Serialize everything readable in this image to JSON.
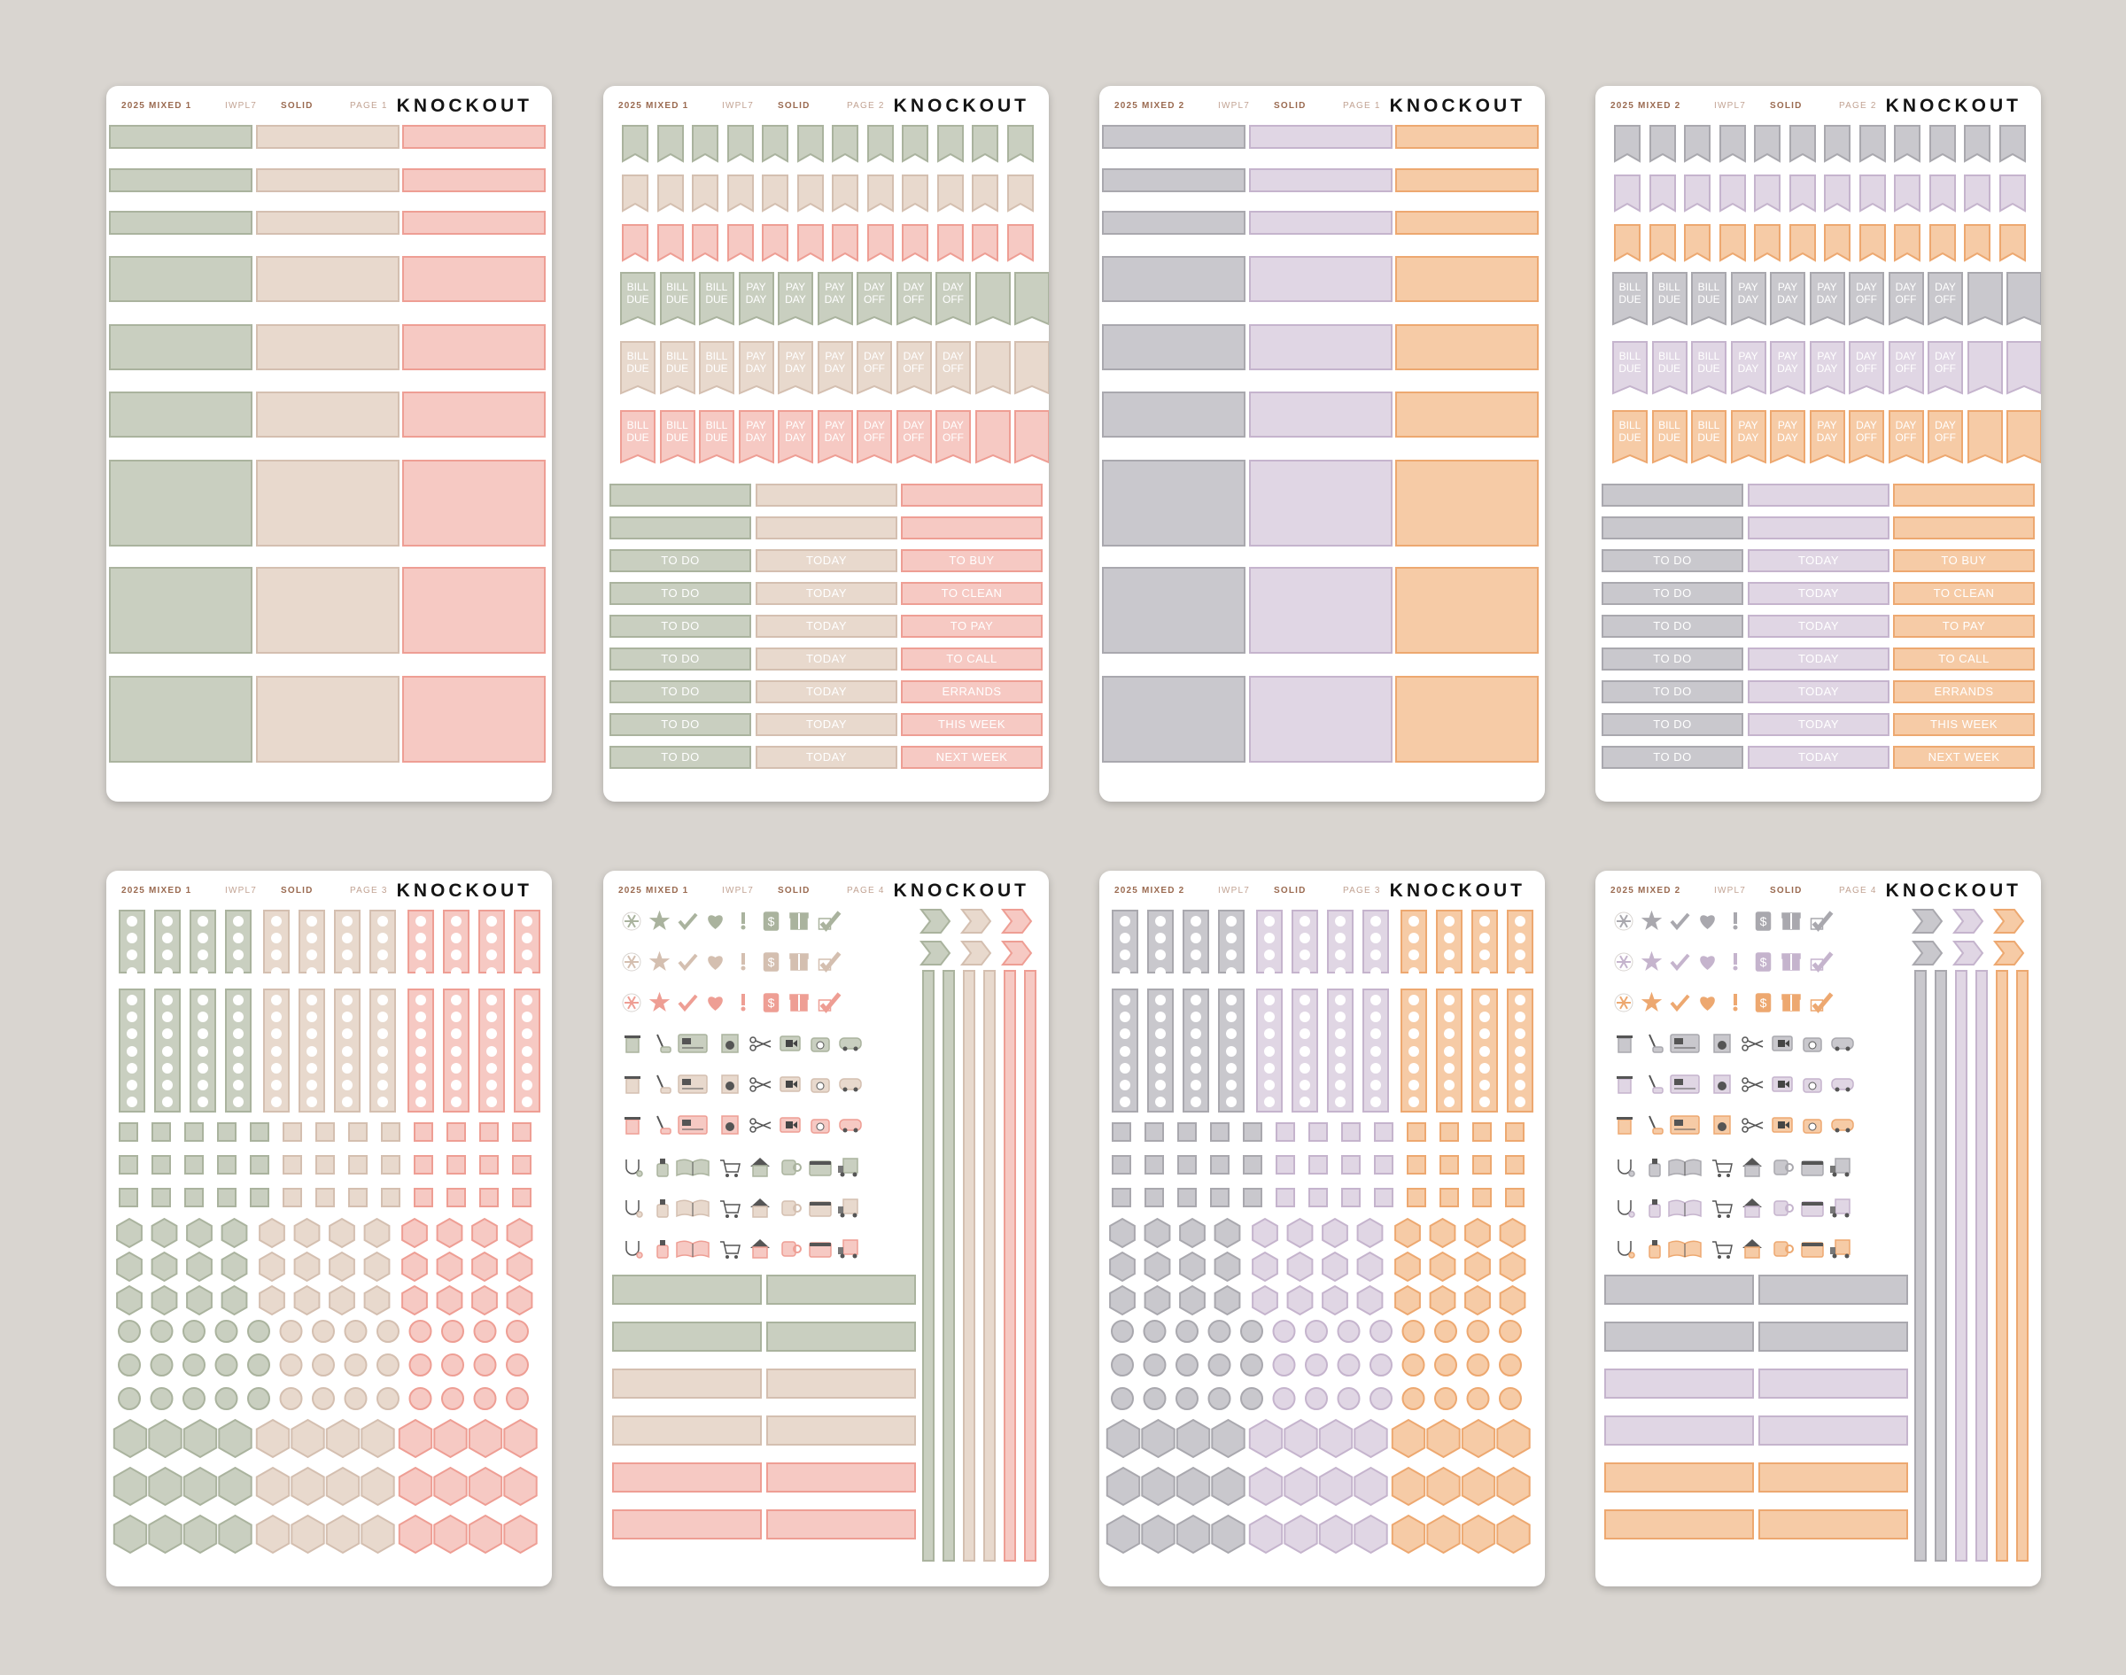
{
  "colors": {
    "mixed1": [
      "#c9cfc0",
      "#e8d9cd",
      "#f6c9c3"
    ],
    "mixed2": [
      "#c9c8cd",
      "#e0d6e4",
      "#f6cba6"
    ],
    "mixed1_dark": [
      "#aab39e",
      "#d4bfb0",
      "#ee9e94"
    ],
    "mixed2_dark": [
      "#a9a8ae",
      "#c5b4cd",
      "#eda870"
    ]
  },
  "sheets": [
    {
      "name": "2025 MIXED 1",
      "code": "IWPL7",
      "finish": "SOLID",
      "page": "PAGE 1",
      "brand": "KNOCKOUT"
    },
    {
      "name": "2025 MIXED 1",
      "code": "IWPL7",
      "finish": "SOLID",
      "page": "PAGE 2",
      "brand": "KNOCKOUT"
    },
    {
      "name": "2025 MIXED 2",
      "code": "IWPL7",
      "finish": "SOLID",
      "page": "PAGE 1",
      "brand": "KNOCKOUT"
    },
    {
      "name": "2025 MIXED 2",
      "code": "IWPL7",
      "finish": "SOLID",
      "page": "PAGE 2",
      "brand": "KNOCKOUT"
    },
    {
      "name": "2025 MIXED 1",
      "code": "IWPL7",
      "finish": "SOLID",
      "page": "PAGE 3",
      "brand": "KNOCKOUT"
    },
    {
      "name": "2025 MIXED 1",
      "code": "IWPL7",
      "finish": "SOLID",
      "page": "PAGE 4",
      "brand": "KNOCKOUT"
    },
    {
      "name": "2025 MIXED 2",
      "code": "IWPL7",
      "finish": "SOLID",
      "page": "PAGE 3",
      "brand": "KNOCKOUT"
    },
    {
      "name": "2025 MIXED 2",
      "code": "IWPL7",
      "finish": "SOLID",
      "page": "PAGE 4",
      "brand": "KNOCKOUT"
    }
  ],
  "flag_labels": [
    [
      "BILL",
      "DUE"
    ],
    [
      "BILL",
      "DUE"
    ],
    [
      "BILL",
      "DUE"
    ],
    [
      "PAY",
      "DAY"
    ],
    [
      "PAY",
      "DAY"
    ],
    [
      "PAY",
      "DAY"
    ],
    [
      "DAY",
      "OFF"
    ],
    [
      "DAY",
      "OFF"
    ],
    [
      "DAY",
      "OFF"
    ]
  ],
  "label_strips": {
    "col1": "TO DO",
    "col2": "TODAY",
    "col3": [
      "TO BUY",
      "TO CLEAN",
      "TO PAY",
      "TO CALL",
      "ERRANDS",
      "THIS WEEK",
      "NEXT WEEK"
    ]
  },
  "icons": [
    "snowflake-icon",
    "star-icon",
    "check-icon",
    "heart-icon",
    "exclamation-icon",
    "dollar-icon",
    "gift-icon",
    "checkbox-tick-icon",
    "trash-can-icon",
    "vacuum-icon",
    "bank-card-icon",
    "washer-icon",
    "scissors-icon",
    "video-call-icon",
    "phone-icon",
    "car-icon",
    "stethoscope-icon",
    "cleaning-spray-icon",
    "open-book-icon",
    "shopping-cart-icon",
    "house-icon",
    "mug-icon",
    "cake-icon",
    "delivery-truck-icon"
  ]
}
